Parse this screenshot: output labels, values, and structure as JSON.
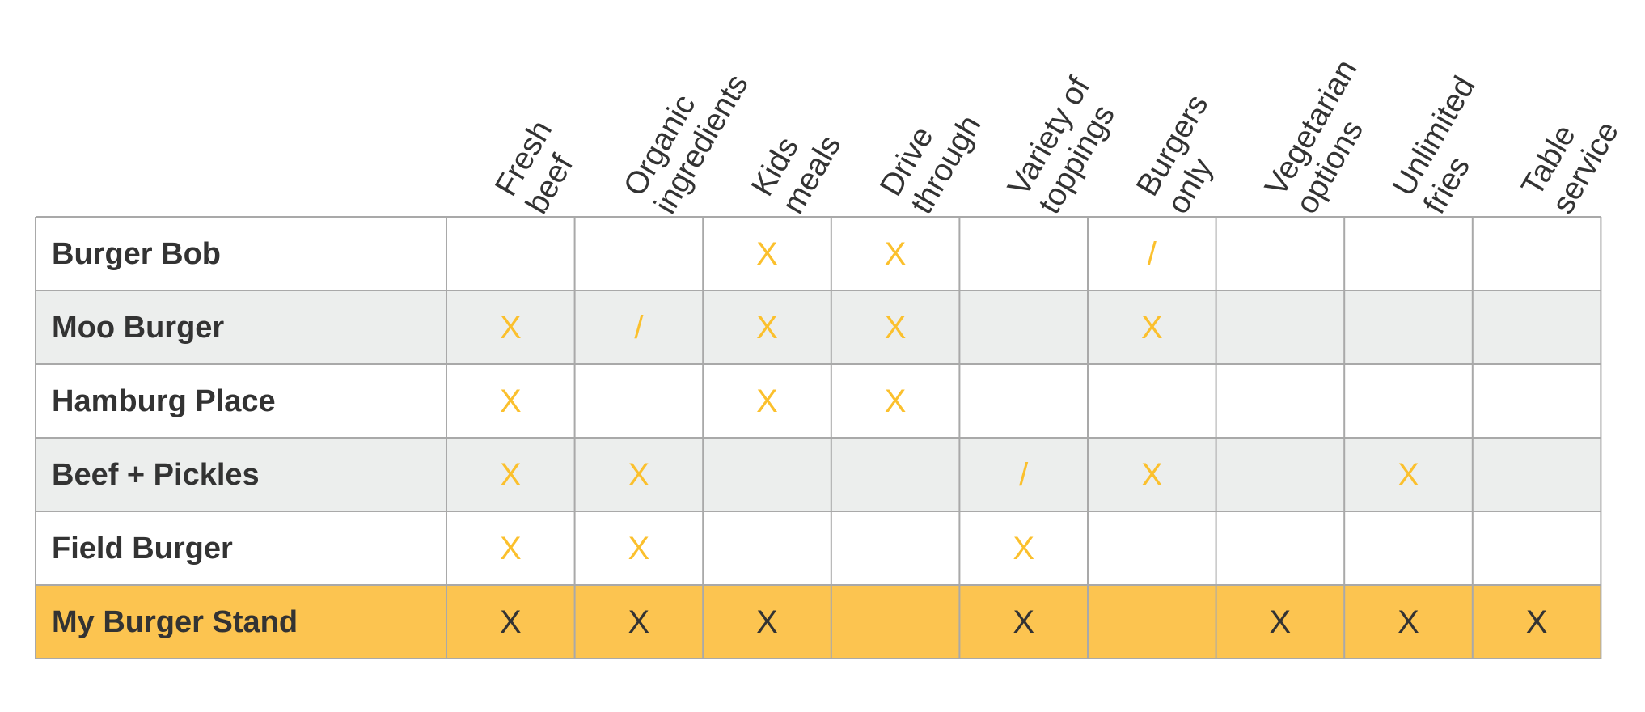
{
  "chart_data": {
    "type": "table",
    "columns": [
      [
        "Fresh",
        "beef"
      ],
      [
        "Organic",
        "ingredients"
      ],
      [
        "Kids",
        "meals"
      ],
      [
        "Drive",
        "through"
      ],
      [
        "Variety of",
        "toppings"
      ],
      [
        "Burgers",
        "only"
      ],
      [
        "Vegetarian",
        "options"
      ],
      [
        "Unlimited",
        "fries"
      ],
      [
        "Table",
        "service"
      ]
    ],
    "rows": [
      {
        "name": "Burger Bob",
        "cells": [
          "",
          "",
          "X",
          "X",
          "",
          "/",
          "",
          "",
          ""
        ]
      },
      {
        "name": "Moo Burger",
        "cells": [
          "X",
          "/",
          "X",
          "X",
          "",
          "X",
          "",
          "",
          ""
        ]
      },
      {
        "name": "Hamburg Place",
        "cells": [
          "X",
          "",
          "X",
          "X",
          "",
          "",
          "",
          "",
          ""
        ]
      },
      {
        "name": "Beef + Pickles",
        "cells": [
          "X",
          "X",
          "",
          "",
          "/",
          "X",
          "",
          "X",
          ""
        ]
      },
      {
        "name": "Field Burger",
        "cells": [
          "X",
          "X",
          "",
          "",
          "X",
          "",
          "",
          "",
          ""
        ]
      },
      {
        "name": "My Burger Stand",
        "cells": [
          "X",
          "X",
          "X",
          "",
          "X",
          "",
          "X",
          "X",
          "X"
        ]
      }
    ],
    "highlight_row": "My Burger Stand",
    "colors": {
      "mark": "#fbc02d",
      "highlight_mark": "#333333",
      "highlight_fill": "#fcc450",
      "alt_row_fill": "#eceeed",
      "row_fill": "#ffffff",
      "grid": "#a9a9a9",
      "text": "#333333"
    }
  }
}
